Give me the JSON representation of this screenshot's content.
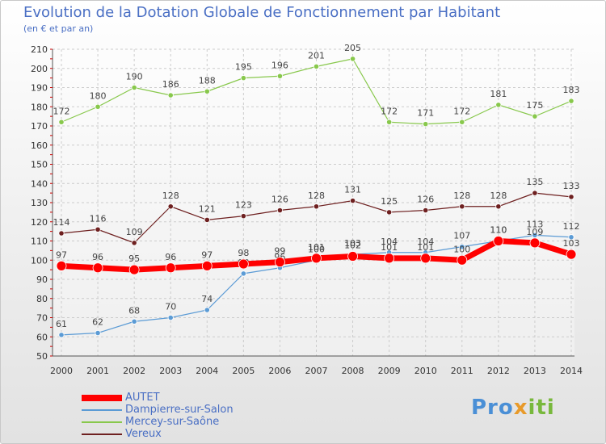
{
  "header": {
    "title": "Evolution de la Dotation Globale de Fonctionnement par Habitant",
    "subtitle": "(en € et par an)"
  },
  "logo": {
    "text_a": "Pro",
    "text_b": "x",
    "text_c": "iti"
  },
  "colors": {
    "accent": "#4a6fc4",
    "grid": "#cccccc",
    "axis_ticks": "#cc0000"
  },
  "chart_data": {
    "type": "line",
    "title": "Evolution de la Dotation Globale de Fonctionnement par Habitant",
    "subtitle": "(en € et par an)",
    "xlabel": "",
    "ylabel": "",
    "x": [
      "2000",
      "2001",
      "2002",
      "2003",
      "2004",
      "2005",
      "2006",
      "2007",
      "2008",
      "2009",
      "2010",
      "2011",
      "2012",
      "2013",
      "2014"
    ],
    "ylim": [
      50,
      210
    ],
    "yticks": [
      50,
      60,
      70,
      80,
      90,
      100,
      110,
      120,
      130,
      140,
      150,
      160,
      170,
      180,
      190,
      200,
      210
    ],
    "grid": true,
    "legend_position": "bottom-left",
    "series": [
      {
        "name": "Mercey-sur-Saône",
        "color": "#88c84c",
        "values": [
          172,
          180,
          190,
          186,
          188,
          195,
          196,
          201,
          205,
          172,
          171,
          172,
          181,
          175,
          183
        ],
        "width": 1.2,
        "marker": 3.2
      },
      {
        "name": "Vereux",
        "color": "#6e2020",
        "values": [
          114,
          116,
          109,
          128,
          121,
          123,
          126,
          128,
          131,
          125,
          126,
          128,
          128,
          135,
          133
        ],
        "width": 1.2,
        "marker": 3.2
      },
      {
        "name": "Dampierre-sur-Salon",
        "color": "#5b9bd5",
        "values": [
          61,
          62,
          68,
          70,
          74,
          93,
          96,
          100,
          103,
          104,
          104,
          107,
          110,
          113,
          112
        ],
        "width": 1.2,
        "marker": 3.2
      },
      {
        "name": "AUTET",
        "color": "#ff0000",
        "values": [
          97,
          96,
          95,
          96,
          97,
          98,
          99,
          101,
          102,
          101,
          101,
          100,
          110,
          109,
          103
        ],
        "width": 7,
        "marker": 6
      }
    ],
    "legend_order": [
      "AUTET",
      "Dampierre-sur-Salon",
      "Mercey-sur-Saône",
      "Vereux"
    ]
  }
}
